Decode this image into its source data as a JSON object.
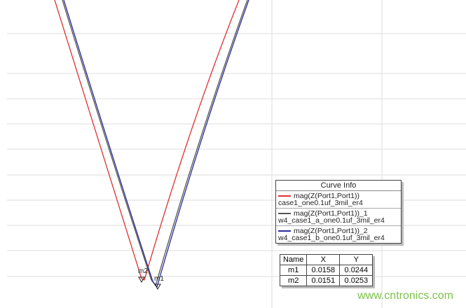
{
  "chart_data": {
    "type": "line",
    "grid": true,
    "legend_title": "Curve Info",
    "legend_placement": "bottom-right",
    "series": [
      {
        "name": "mag(Z(Port1,Port1))",
        "setup": "case1_one0.1uf_3mil_er4",
        "color": "#e03030"
      },
      {
        "name": "mag(Z(Port1,Port1))_1",
        "setup": "w4_case1_a_one0.1uf_3mil_er4",
        "color": "#555555"
      },
      {
        "name": "mag(Z(Port1,Port1))_2",
        "setup": "w4_case1_b_one0.1uf_3mil_er4",
        "color": "#2a2a9a"
      }
    ],
    "markers": {
      "headers": [
        "Name",
        "X",
        "Y"
      ],
      "rows": [
        [
          "m1",
          "0.0158",
          "0.0244"
        ],
        [
          "m2",
          "0.0151",
          "0.0253"
        ]
      ]
    }
  },
  "watermark": "www.cntronics.com"
}
